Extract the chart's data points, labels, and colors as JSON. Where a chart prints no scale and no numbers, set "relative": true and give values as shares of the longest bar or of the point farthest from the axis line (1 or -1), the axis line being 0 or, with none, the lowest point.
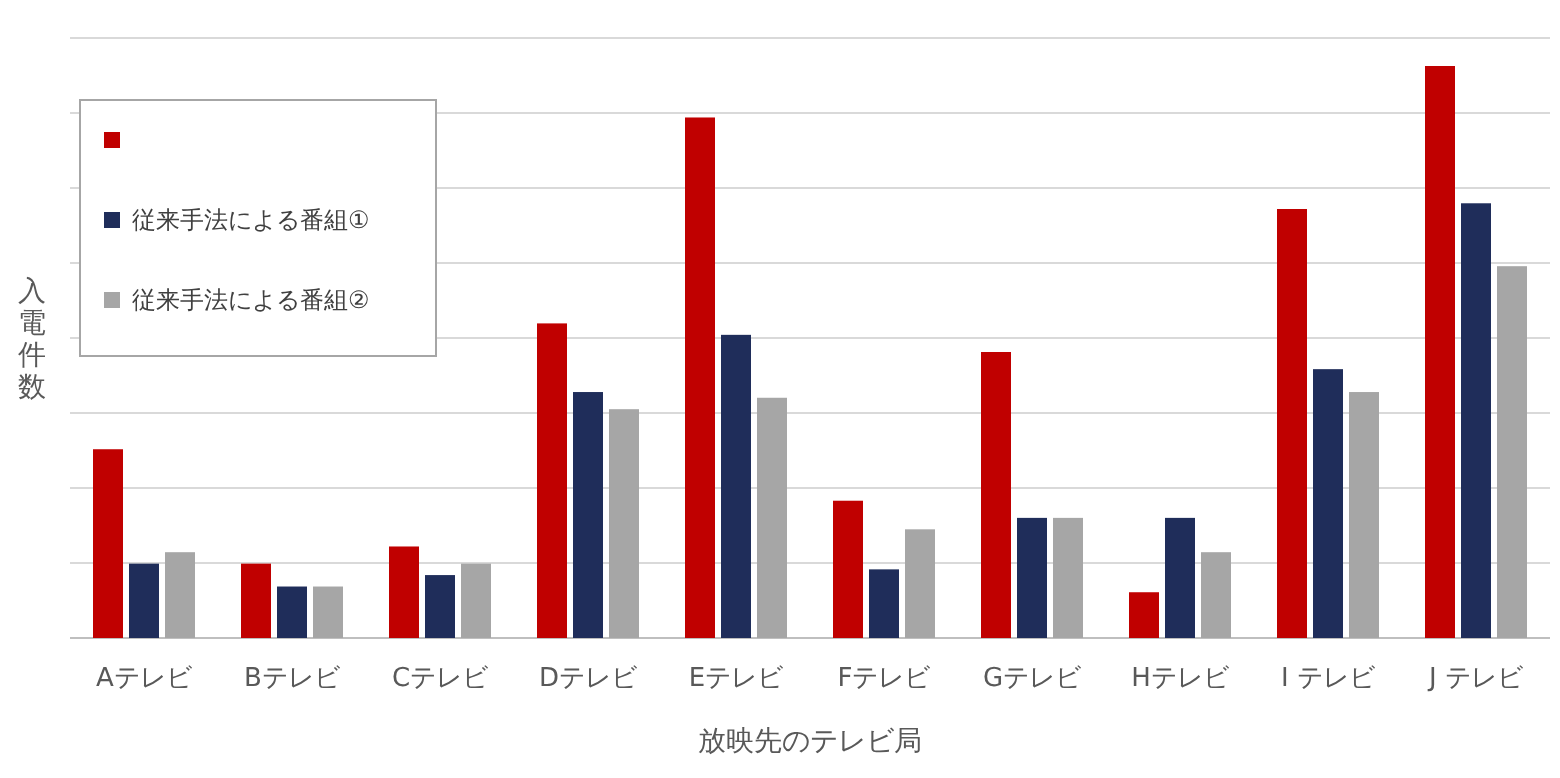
{
  "chart_data": {
    "type": "bar",
    "relative": true,
    "xlabel": "放映先のテレビ局",
    "ylabel": "入電件数",
    "categories": [
      "Aテレビ",
      "Bテレビ",
      "Cテレビ",
      "Dテレビ",
      "Eテレビ",
      "Fテレビ",
      "Gテレビ",
      "Hテレビ",
      "I テレビ",
      "J テレビ"
    ],
    "series": [
      {
        "color": "#c00000",
        "values": [
          0.33,
          0.13,
          0.16,
          0.55,
          0.91,
          0.24,
          0.5,
          0.08,
          0.75,
          1
        ]
      },
      {
        "name": "従来手法による番組①",
        "color": "#1f2d5a",
        "values": [
          0.13,
          0.09,
          0.11,
          0.43,
          0.53,
          0.12,
          0.21,
          0.21,
          0.47,
          0.76
        ]
      },
      {
        "name": "従来手法による番組②",
        "color": "#a6a6a6",
        "values": [
          0.15,
          0.09,
          0.13,
          0.4,
          0.42,
          0.19,
          0.21,
          0.15,
          0.43,
          0.65
        ]
      }
    ],
    "grid": "y",
    "legend": "top left"
  }
}
